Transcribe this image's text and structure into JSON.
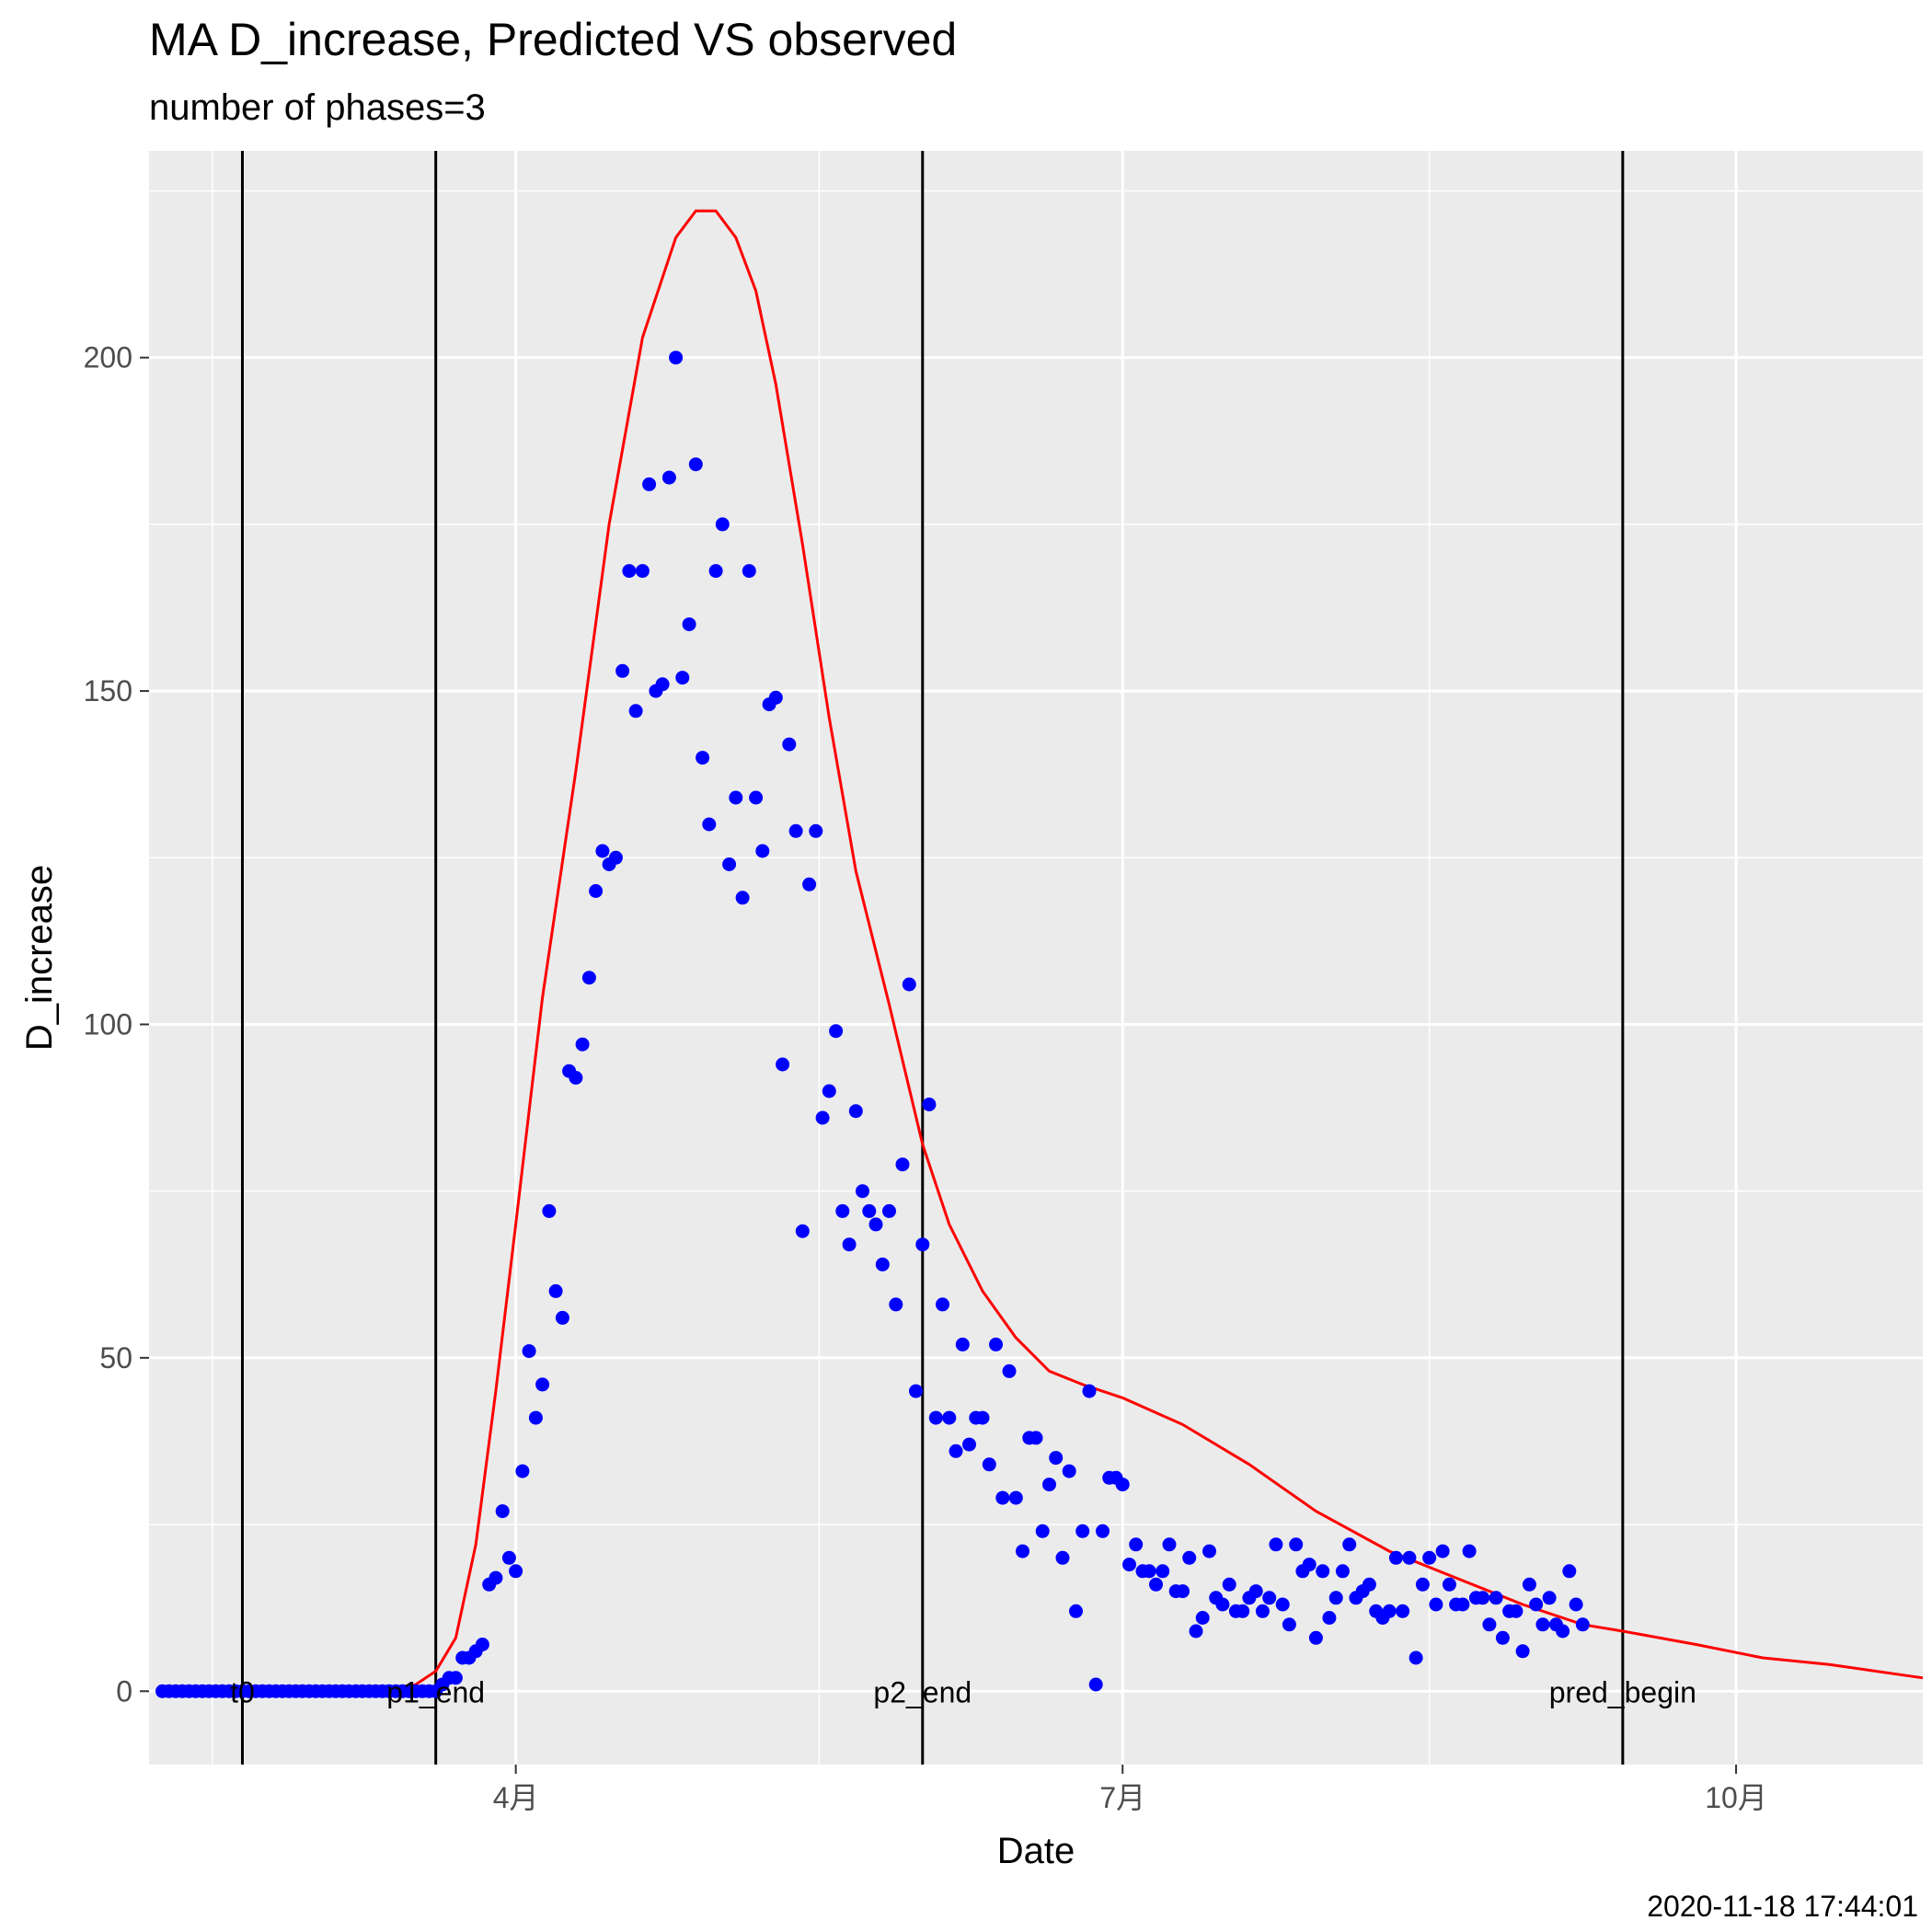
{
  "chart_data": {
    "type": "scatter",
    "title": "MA D_increase, Predicted VS observed",
    "subtitle": "number of phases=3",
    "xlabel": "Date",
    "ylabel": "D_increase",
    "timestamp": "2020-11-18 17:44:01",
    "xlim": [
      "2020-02-06",
      "2020-10-29"
    ],
    "ylim": [
      -11,
      231
    ],
    "grid": true,
    "x_ticks": [
      {
        "date": "2020-04-01",
        "label": "4月"
      },
      {
        "date": "2020-07-01",
        "label": "7月"
      },
      {
        "date": "2020-10-01",
        "label": "10月"
      }
    ],
    "y_ticks": [
      0,
      50,
      100,
      150,
      200
    ],
    "phase_lines": [
      {
        "date": "2020-02-20",
        "label": "t0"
      },
      {
        "date": "2020-03-20",
        "label": "p1_end"
      },
      {
        "date": "2020-06-01",
        "label": "p2_end"
      },
      {
        "date": "2020-09-14",
        "label": "pred_begin"
      }
    ],
    "colors": {
      "observed": "#0000ff",
      "predicted": "#ff0000",
      "panel": "#ebebeb",
      "grid": "#ffffff",
      "vline": "#000000"
    },
    "observed": {
      "start_date": "2020-02-08",
      "values": [
        0,
        0,
        0,
        0,
        0,
        0,
        0,
        0,
        0,
        0,
        0,
        0,
        0,
        0,
        0,
        0,
        0,
        0,
        0,
        0,
        0,
        0,
        0,
        0,
        0,
        0,
        0,
        0,
        0,
        0,
        0,
        0,
        0,
        0,
        0,
        0,
        0,
        0,
        0,
        0,
        0,
        0,
        1,
        2,
        2,
        5,
        5,
        6,
        7,
        16,
        17,
        27,
        20,
        18,
        33,
        51,
        41,
        46,
        72,
        60,
        56,
        93,
        92,
        97,
        107,
        120,
        126,
        124,
        125,
        153,
        168,
        147,
        168,
        181,
        150,
        151,
        182,
        200,
        152,
        160,
        184,
        140,
        130,
        168,
        175,
        124,
        134,
        119,
        168,
        134,
        126,
        148,
        149,
        94,
        142,
        129,
        69,
        121,
        129,
        86,
        90,
        99,
        72,
        67,
        87,
        75,
        72,
        70,
        64,
        72,
        58,
        79,
        106,
        45,
        67,
        88,
        41,
        58,
        41,
        36,
        52,
        37,
        41,
        41,
        34,
        52,
        29,
        48,
        29,
        21,
        38,
        38,
        24,
        31,
        35,
        20,
        33,
        12,
        24,
        45,
        1,
        24,
        32,
        32,
        31,
        19,
        22,
        18,
        18,
        16,
        18,
        22,
        15,
        15,
        20,
        9,
        11,
        21,
        14,
        13,
        16,
        12,
        12,
        14,
        15,
        12,
        14,
        22,
        13,
        10,
        22,
        18,
        19,
        8,
        18,
        11,
        14,
        18,
        22,
        14,
        15,
        16,
        12,
        11,
        12,
        20,
        12,
        20,
        5,
        16,
        20,
        13,
        21,
        16,
        13,
        13,
        21,
        14,
        14,
        10,
        14,
        8,
        12,
        12,
        6,
        16,
        13,
        10,
        14,
        10,
        9,
        18,
        13,
        10
      ]
    },
    "predicted": {
      "x": [
        "2020-03-10",
        "2020-03-17",
        "2020-03-20",
        "2020-03-23",
        "2020-03-26",
        "2020-03-29",
        "2020-04-01",
        "2020-04-05",
        "2020-04-10",
        "2020-04-15",
        "2020-04-20",
        "2020-04-25",
        "2020-04-28",
        "2020-05-01",
        "2020-05-04",
        "2020-05-07",
        "2020-05-10",
        "2020-05-14",
        "2020-05-18",
        "2020-05-22",
        "2020-05-27",
        "2020-06-01",
        "2020-06-05",
        "2020-06-10",
        "2020-06-15",
        "2020-06-20",
        "2020-06-25",
        "2020-07-01",
        "2020-07-10",
        "2020-07-20",
        "2020-07-30",
        "2020-08-10",
        "2020-08-20",
        "2020-08-30",
        "2020-09-08",
        "2020-09-14",
        "2020-09-25",
        "2020-10-05",
        "2020-10-15",
        "2020-10-29"
      ],
      "y": [
        0,
        1,
        3,
        8,
        22,
        45,
        70,
        104,
        138,
        175,
        203,
        218,
        222,
        222,
        218,
        210,
        196,
        172,
        146,
        123,
        103,
        82,
        70,
        60,
        53,
        48,
        46,
        44,
        40,
        34,
        27,
        21,
        17,
        13,
        10,
        9,
        7,
        5,
        4,
        2
      ]
    }
  }
}
